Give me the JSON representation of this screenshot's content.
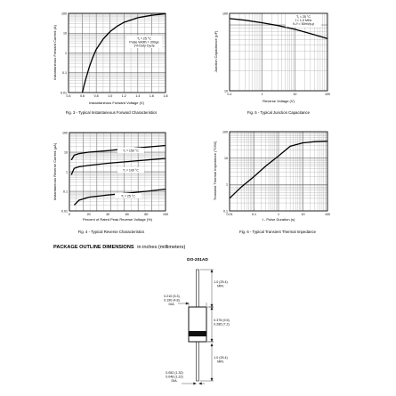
{
  "charts": [
    {
      "id": "fig3",
      "caption": "Fig. 3 - Typical Instantaneous Forward Characteristics",
      "xlabel": "Instantaneous Forward Voltage (V)",
      "ylabel": "Instantaneous Forward Current (A)",
      "x_ticks": [
        "0.4",
        "0.6",
        "0.8",
        "1.0",
        "1.2",
        "1.4",
        "1.6",
        "1.8"
      ],
      "y_ticks": [
        "100",
        "10",
        "1",
        "0.1",
        "0.01"
      ],
      "annotations": [
        "Tⱼ = 25 °C",
        "Pulse Width = 300µs",
        "1% Duty Cycle"
      ]
    },
    {
      "id": "fig5",
      "caption": "Fig. 5 - Typical Junction Capacitance",
      "xlabel": "Reverse Voltage (V)",
      "ylabel": "Junction Capacitance (pF)",
      "x_ticks": [
        "0.1",
        "1",
        "10",
        "100"
      ],
      "y_ticks": [
        "100",
        "10"
      ],
      "annotations": [
        "Tⱼ = 25 °C",
        "f = 1.0 MHz",
        "Vₛᵢᵍ = 50mVp-p"
      ]
    },
    {
      "id": "fig4",
      "caption": "Fig. 4 - Typical Reverse Characteristics",
      "xlabel": "Percent of Rated Peak Reverse Voltage (%)",
      "ylabel": "Instantaneous Reverse Current (µA)",
      "x_ticks": [
        "0",
        "20",
        "40",
        "60",
        "80",
        "100"
      ],
      "y_ticks": [
        "100",
        "10",
        "1",
        "0.1",
        "0.01"
      ],
      "annotations": [
        "Tⱼ = 150 °C",
        "Tⱼ = 100 °C",
        "Tⱼ = 25 °C"
      ]
    },
    {
      "id": "fig6",
      "caption": "Fig. 6 - Typical Transient Thermal Impedance",
      "xlabel": "t - Pulse Duration (s)",
      "ylabel": "Transient Thermal Impedance (°C/W)",
      "x_ticks": [
        "0.01",
        "0.1",
        "1",
        "10",
        "100"
      ],
      "y_ticks": [
        "100",
        "10",
        "1",
        "0.1"
      ],
      "annotations": []
    }
  ],
  "chart_data": [
    {
      "type": "line",
      "title": "",
      "xlabel": "Instantaneous Forward Voltage (V)",
      "ylabel": "Instantaneous Forward Current (A)",
      "xlim": [
        0.4,
        1.8
      ],
      "ylim": [
        0.01,
        100
      ],
      "yscale": "log",
      "grid": true,
      "series": [
        {
          "x": [
            0.6,
            0.62,
            0.65,
            0.7,
            0.75,
            0.8,
            0.9,
            1.0,
            1.1,
            1.2,
            1.4,
            1.6,
            1.8
          ],
          "y": [
            0.01,
            0.02,
            0.05,
            0.2,
            0.6,
            1.5,
            5,
            12,
            22,
            35,
            60,
            80,
            95
          ]
        }
      ]
    },
    {
      "type": "line",
      "title": "",
      "xlabel": "Reverse Voltage (V)",
      "ylabel": "Junction Capacitance (pF)",
      "xlim": [
        0.1,
        100
      ],
      "ylim": [
        10,
        150
      ],
      "xscale": "log",
      "yscale": "log",
      "grid": true,
      "series": [
        {
          "x": [
            0.1,
            0.3,
            1,
            3,
            10,
            30,
            100
          ],
          "y": [
            125,
            118,
            108,
            98,
            86,
            74,
            62
          ]
        }
      ]
    },
    {
      "type": "line",
      "title": "",
      "xlabel": "Percent of Rated Peak Reverse Voltage (%)",
      "ylabel": "Instantaneous Reverse Current (µA)",
      "xlim": [
        0,
        100
      ],
      "ylim": [
        0.01,
        100
      ],
      "yscale": "log",
      "grid": true,
      "series": [
        {
          "name": "Tⱼ = 150 °C",
          "x": [
            2,
            5,
            10,
            20,
            40,
            60,
            80,
            100
          ],
          "y": [
            4,
            7,
            8.5,
            10,
            12,
            15,
            18,
            22
          ]
        },
        {
          "name": "Tⱼ = 100 °C",
          "x": [
            2,
            5,
            10,
            20,
            40,
            60,
            80,
            100
          ],
          "y": [
            0.7,
            1.5,
            1.8,
            2.1,
            2.7,
            3.3,
            4,
            4.8
          ]
        },
        {
          "name": "Tⱼ = 25 °C",
          "x": [
            5,
            10,
            20,
            40,
            60,
            80,
            100
          ],
          "y": [
            0.02,
            0.035,
            0.05,
            0.065,
            0.08,
            0.1,
            0.13
          ]
        }
      ]
    },
    {
      "type": "line",
      "title": "",
      "xlabel": "t - Pulse Duration (s)",
      "ylabel": "Transient Thermal Impedance (°C/W)",
      "xlim": [
        0.01,
        100
      ],
      "ylim": [
        0.1,
        100
      ],
      "xscale": "log",
      "yscale": "log",
      "grid": true,
      "series": [
        {
          "x": [
            0.01,
            0.03,
            0.1,
            0.3,
            1,
            3,
            10,
            30,
            100
          ],
          "y": [
            0.3,
            0.8,
            2,
            5,
            12,
            28,
            38,
            42,
            44
          ]
        }
      ]
    }
  ],
  "package": {
    "title": "PACKAGE OUTLINE DIMENSIONS",
    "subtitle": "in inches (millimeters)",
    "case_name": "DO-201AD",
    "dims": [
      "1.0 (25.4)",
      "MIN.",
      "0.210 (5.3)",
      "0.190 (4.8)",
      "DIA.",
      "0.375 (9.5)",
      "0.285 (7.2)",
      "1.0 (25.4)",
      "MIN.",
      "0.052 (1.32)",
      "0.048 (1.22)",
      "DIA."
    ]
  },
  "colors": {
    "grid_major": "#555555",
    "grid_minor": "#9a9a9a",
    "curve": "#000000"
  }
}
